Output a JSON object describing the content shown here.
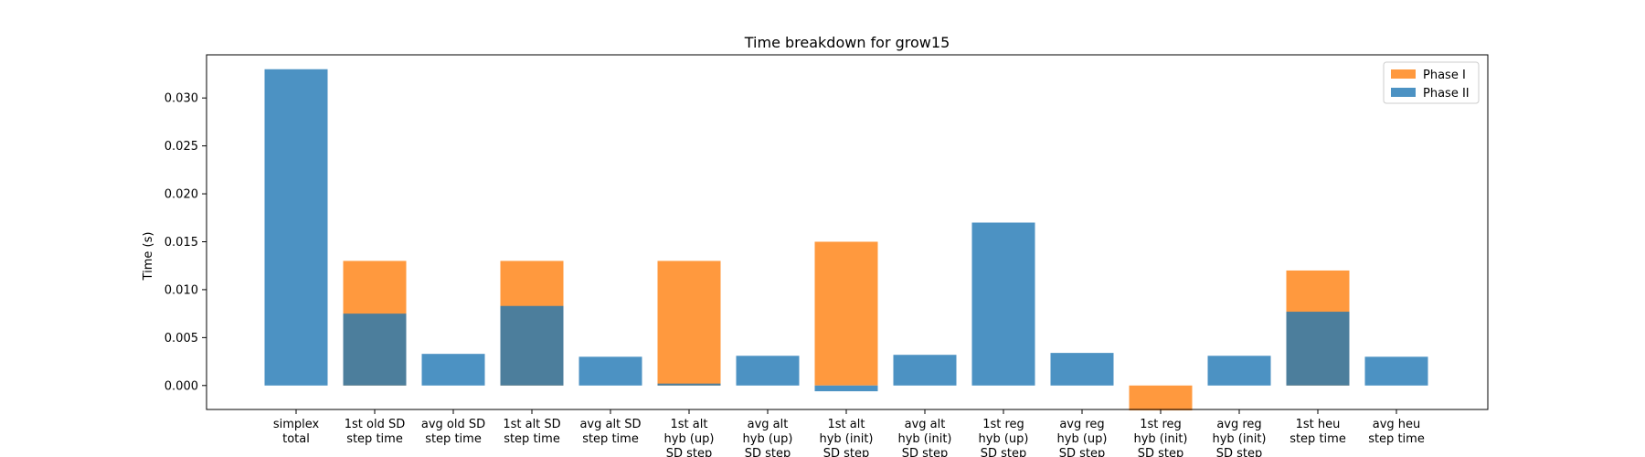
{
  "chart_data": {
    "type": "bar",
    "title": "Time breakdown for grow15",
    "xlabel": "",
    "ylabel": "Time (s)",
    "ylim": [
      -0.0025,
      0.0345
    ],
    "yticks": [
      "0.000",
      "0.005",
      "0.010",
      "0.015",
      "0.020",
      "0.025",
      "0.030"
    ],
    "grid": false,
    "legend_position": "top-right",
    "categories": [
      "simplex\ntotal",
      "1st old SD\nstep time",
      "avg old SD\nstep time",
      "1st alt SD\nstep time",
      "avg alt SD\nstep time",
      "1st alt\nhyb (up)\nSD step",
      "avg alt\nhyb (up)\nSD step",
      "1st alt\nhyb (init)\nSD step",
      "avg alt\nhyb (init)\nSD step",
      "1st reg\nhyb (up)\nSD step",
      "avg reg\nhyb (up)\nSD step",
      "1st reg\nhyb (init)\nSD step",
      "avg reg\nhyb (init)\nSD step",
      "1st heu\nstep time",
      "avg heu\nstep time"
    ],
    "series": [
      {
        "name": "Phase I",
        "color": "#ff7f0e",
        "values": [
          0,
          0.013,
          0,
          0.013,
          0,
          0.013,
          0,
          0.015,
          0,
          0,
          0,
          -0.0026,
          0,
          0.012,
          0
        ]
      },
      {
        "name": "Phase II",
        "color": "#1f77b4",
        "values": [
          0.033,
          0.0075,
          0.0033,
          0.0083,
          0.003,
          0.0002,
          0.0031,
          -0.0006,
          0.0032,
          0.017,
          0.0034,
          0,
          0.0031,
          0.0077,
          0.003
        ]
      }
    ]
  }
}
